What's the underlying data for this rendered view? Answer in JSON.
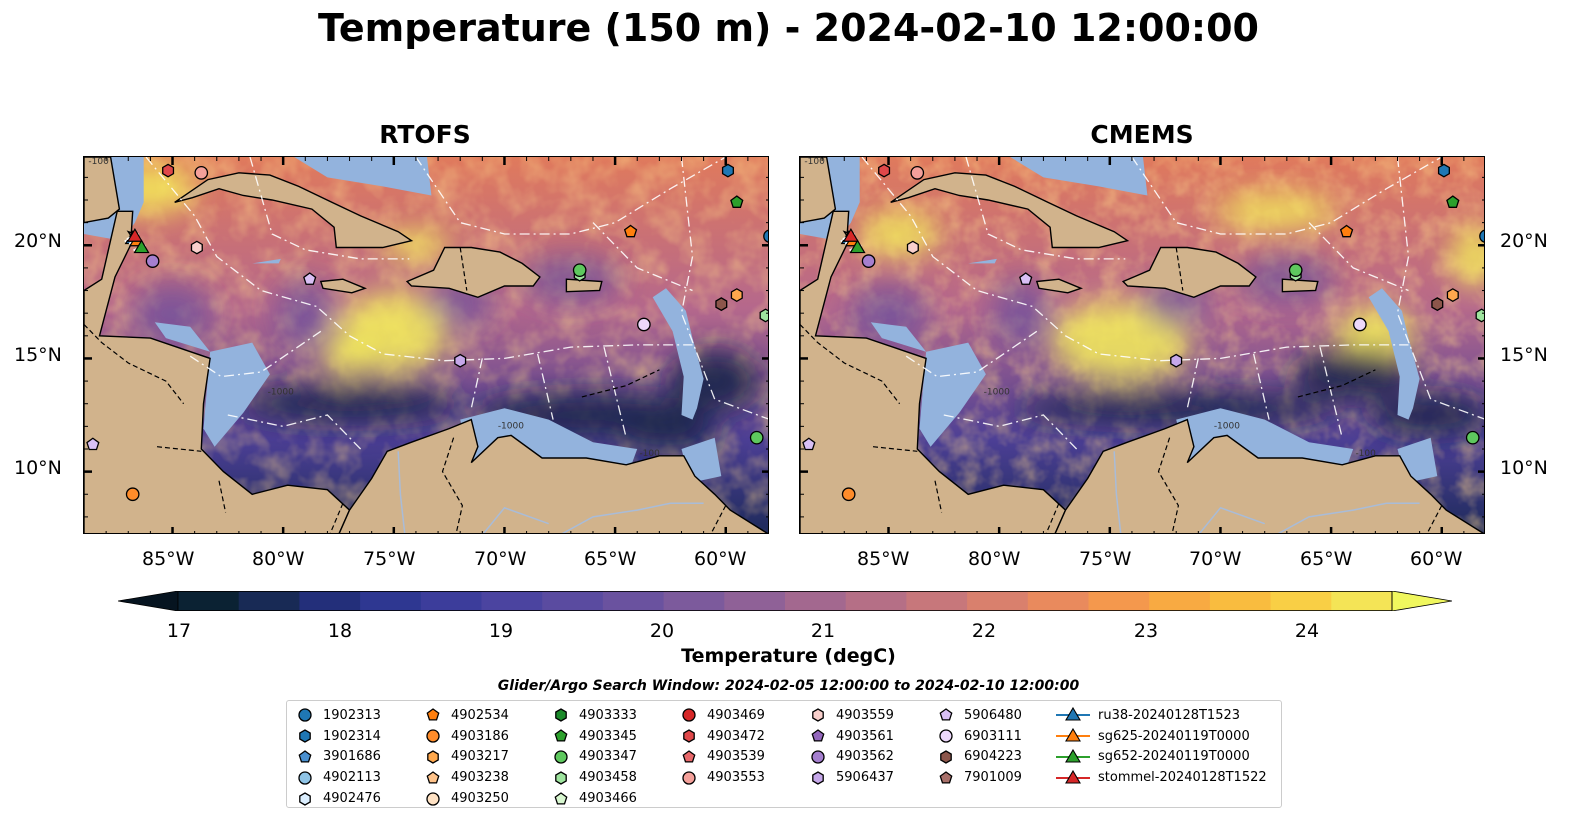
{
  "title": "Temperature (150 m) - 2024-02-10 12:00:00",
  "panels": [
    {
      "title": "RTOFS"
    },
    {
      "title": "CMEMS"
    }
  ],
  "axes": {
    "lat_ticks": [
      "20°N",
      "15°N",
      "10°N"
    ],
    "lon_ticks": [
      "85°W",
      "80°W",
      "75°W",
      "70°W",
      "65°W",
      "60°W"
    ]
  },
  "contour_labels": [
    "-100",
    "-1000",
    "-100",
    "-1000"
  ],
  "colorbar": {
    "label": "Temperature (degC)",
    "ticks": [
      "17",
      "18",
      "19",
      "20",
      "21",
      "22",
      "23",
      "24"
    ],
    "min": 16.5,
    "max": 24.75,
    "colors": [
      "#0b2233",
      "#182a55",
      "#232f7a",
      "#2e3791",
      "#3c3d9b",
      "#4b44a0",
      "#5a4ba0",
      "#6a529f",
      "#7c5a9c",
      "#8f6197",
      "#a3688f",
      "#b56f86",
      "#c7777b",
      "#d9806d",
      "#e98a5d",
      "#f4984d",
      "#f8aa42",
      "#f9bc3f",
      "#f9cf45",
      "#f4e456"
    ],
    "under_color": "#061420",
    "over_color": "#f0f75e"
  },
  "search_window": "Glider/Argo Search Window: 2024-02-05 12:00:00 to 2024-02-10 12:00:00",
  "legend": [
    [
      {
        "label": "1902313",
        "marker": "circle",
        "color": "#1f77b4"
      },
      {
        "label": "1902314",
        "marker": "hexagon",
        "color": "#1f77b4"
      },
      {
        "label": "3901686",
        "marker": "pentagon",
        "color": "#4a90d0"
      },
      {
        "label": "4902113",
        "marker": "circle",
        "color": "#8fc4e6"
      },
      {
        "label": "4902476",
        "marker": "hexagon",
        "color": "#dcefff"
      }
    ],
    [
      {
        "label": "4902534",
        "marker": "pentagon",
        "color": "#ff7f0e"
      },
      {
        "label": "4903186",
        "marker": "circle",
        "color": "#ff8c2a"
      },
      {
        "label": "4903217",
        "marker": "hexagon",
        "color": "#ffa84d"
      },
      {
        "label": "4903238",
        "marker": "pentagon",
        "color": "#ffc38a"
      },
      {
        "label": "4903250",
        "marker": "circle",
        "color": "#ffe2c4"
      }
    ],
    [
      {
        "label": "4903333",
        "marker": "hexagon",
        "color": "#1b8a2a"
      },
      {
        "label": "4903345",
        "marker": "pentagon",
        "color": "#2ca02c"
      },
      {
        "label": "4903347",
        "marker": "circle",
        "color": "#5ec85e"
      },
      {
        "label": "4903458",
        "marker": "hexagon",
        "color": "#9ee49e"
      },
      {
        "label": "4903466",
        "marker": "pentagon",
        "color": "#d8f7d0"
      }
    ],
    [
      {
        "label": "4903469",
        "marker": "circle",
        "color": "#d62728"
      },
      {
        "label": "4903472",
        "marker": "hexagon",
        "color": "#e0484a"
      },
      {
        "label": "4903539",
        "marker": "pentagon",
        "color": "#e8686a"
      },
      {
        "label": "4903553",
        "marker": "circle",
        "color": "#f4a09a"
      }
    ],
    [
      {
        "label": "4903559",
        "marker": "hexagon",
        "color": "#f9d0cc"
      },
      {
        "label": "4903561",
        "marker": "pentagon",
        "color": "#9467bd"
      },
      {
        "label": "4903562",
        "marker": "circle",
        "color": "#a57fcf"
      },
      {
        "label": "5906437",
        "marker": "hexagon",
        "color": "#c6a8ea"
      }
    ],
    [
      {
        "label": "5906480",
        "marker": "pentagon",
        "color": "#d9c0f5"
      },
      {
        "label": "6903111",
        "marker": "circle",
        "color": "#edd8fb"
      },
      {
        "label": "6904223",
        "marker": "hexagon",
        "color": "#8c564b"
      },
      {
        "label": "7901009",
        "marker": "pentagon",
        "color": "#a8706a"
      }
    ],
    [
      {
        "label": "ru38-20240128T1523",
        "marker": "triangle",
        "color": "#1f77b4"
      },
      {
        "label": "sg625-20240119T0000",
        "marker": "triangle",
        "color": "#ff7f0e"
      },
      {
        "label": "sg652-20240119T0000",
        "marker": "triangle",
        "color": "#2ca02c"
      },
      {
        "label": "stommel-20240128T1522",
        "marker": "triangle",
        "color": "#d62728"
      }
    ]
  ],
  "floats": [
    {
      "id": "4903472",
      "lon": -85.2,
      "lat": 23.3,
      "marker": "hexagon",
      "color": "#e0484a"
    },
    {
      "id": "4903553",
      "lon": -83.7,
      "lat": 23.2,
      "marker": "circle",
      "color": "#f4a09a"
    },
    {
      "id": "1902314",
      "lon": -59.9,
      "lat": 23.3,
      "marker": "hexagon",
      "color": "#1f77b4"
    },
    {
      "id": "4903345",
      "lon": -59.5,
      "lat": 21.9,
      "marker": "pentagon",
      "color": "#2ca02c"
    },
    {
      "id": "1902313",
      "lon": -58.0,
      "lat": 20.4,
      "marker": "circle",
      "color": "#1f77b4"
    },
    {
      "id": "4902534",
      "lon": -64.3,
      "lat": 20.6,
      "marker": "pentagon",
      "color": "#ff7f0e"
    },
    {
      "id": "4903559",
      "lon": -83.9,
      "lat": 19.9,
      "marker": "hexagon",
      "color": "#f9d0cc"
    },
    {
      "id": "4903562",
      "lon": -85.9,
      "lat": 19.3,
      "marker": "circle",
      "color": "#a57fcf"
    },
    {
      "id": "5906480",
      "lon": -78.8,
      "lat": 18.5,
      "marker": "pentagon",
      "color": "#d9c0f5"
    },
    {
      "id": "4903458",
      "lon": -66.6,
      "lat": 18.7,
      "marker": "hexagon",
      "color": "#9ee49e"
    },
    {
      "id": "4903347",
      "lon": -66.6,
      "lat": 18.9,
      "marker": "circle",
      "color": "#5ec85e"
    },
    {
      "id": "6904223",
      "lon": -60.2,
      "lat": 17.4,
      "marker": "hexagon",
      "color": "#8c564b"
    },
    {
      "id": "4903217",
      "lon": -59.5,
      "lat": 17.8,
      "marker": "hexagon",
      "color": "#ffa84d"
    },
    {
      "id": "4903458b",
      "lon": -58.2,
      "lat": 16.9,
      "marker": "hexagon",
      "color": "#9ee49e"
    },
    {
      "id": "6903111",
      "lon": -63.7,
      "lat": 16.5,
      "marker": "circle",
      "color": "#edd8fb"
    },
    {
      "id": "5906437",
      "lon": -72.0,
      "lat": 14.9,
      "marker": "hexagon",
      "color": "#c6a8ea"
    },
    {
      "id": "4903347b",
      "lon": -58.6,
      "lat": 11.5,
      "marker": "circle",
      "color": "#5ec85e"
    },
    {
      "id": "5906480b",
      "lon": -88.6,
      "lat": 11.2,
      "marker": "pentagon",
      "color": "#d9c0f5"
    },
    {
      "id": "4903186",
      "lon": -86.8,
      "lat": 9.0,
      "marker": "circle",
      "color": "#ff8c2a"
    }
  ],
  "gliders": [
    {
      "id": "ru38-20240128T1523",
      "lon": -86.8,
      "lat": 20.3,
      "color": "#1f77b4"
    },
    {
      "id": "sg625-20240119T0000",
      "lon": -86.6,
      "lat": 20.2,
      "color": "#ff7f0e"
    },
    {
      "id": "sg652-20240119T0000",
      "lon": -86.4,
      "lat": 19.9,
      "color": "#2ca02c"
    },
    {
      "id": "stommel-20240128T1522",
      "lon": -86.7,
      "lat": 20.4,
      "color": "#d62728"
    }
  ]
}
